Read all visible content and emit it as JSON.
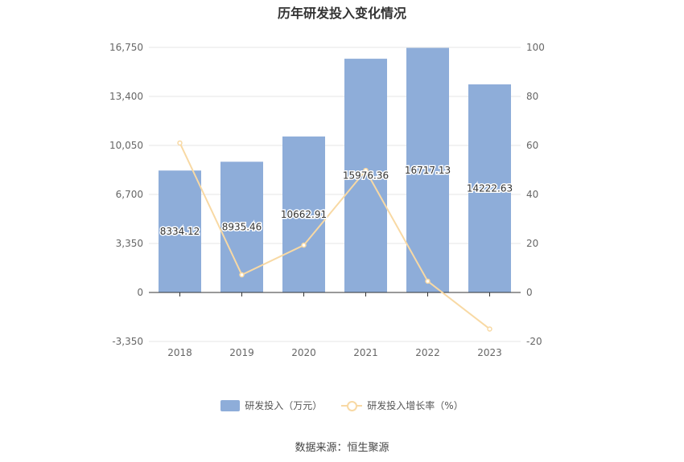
{
  "chart_data": {
    "type": "bar",
    "title": "历年研发投入变化情况",
    "categories": [
      "2018",
      "2019",
      "2020",
      "2021",
      "2022",
      "2023"
    ],
    "series": [
      {
        "name": "研发投入（万元）",
        "type": "bar",
        "axis": "left",
        "values": [
          8334.12,
          8935.46,
          10662.91,
          15976.36,
          16717.13,
          14222.63
        ],
        "labels": [
          "8334.12",
          "8935.46",
          "10662.91",
          "15976.36",
          "16717.13",
          "14222.63"
        ],
        "color": "#8eadd9"
      },
      {
        "name": "研发投入增长率（%）",
        "type": "line",
        "axis": "right",
        "values": [
          61.0,
          7.2,
          19.3,
          49.8,
          4.6,
          -14.9
        ],
        "color": "#f8d9a4"
      }
    ],
    "y_left": {
      "ylim": [
        -3350,
        16750
      ],
      "ticks": [
        -3350,
        0,
        3350,
        6700,
        10050,
        13400,
        16750
      ],
      "tick_labels": [
        "-3,350",
        "0",
        "3,350",
        "6,700",
        "10,050",
        "13,400",
        "16,750"
      ]
    },
    "y_right": {
      "ylim": [
        -20,
        100
      ],
      "ticks": [
        -20,
        0,
        20,
        40,
        60,
        80,
        100
      ],
      "tick_labels": [
        "-20",
        "0",
        "20",
        "40",
        "60",
        "80",
        "100"
      ]
    },
    "grid": true,
    "legend": "bottom-center"
  },
  "source": "数据来源：恒生聚源",
  "colors": {
    "bar": "#8eadd9",
    "line": "#f8d9a4",
    "grid": "#e6e6e6",
    "axis": "#333333"
  }
}
